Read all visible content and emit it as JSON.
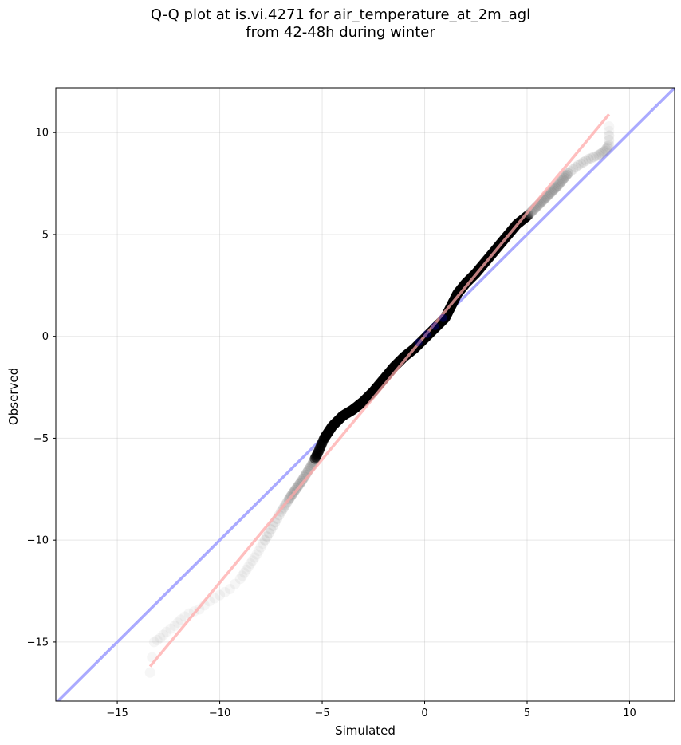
{
  "chart_data": {
    "type": "scatter",
    "title_line1": "Q-Q plot at is.vi.4271 for air_temperature_at_2m_agl",
    "title_line2": "from 42-48h during winter",
    "xlabel": "Simulated",
    "ylabel": "Observed",
    "xlim": [
      -18,
      12.2
    ],
    "ylim": [
      -17.9,
      12.2
    ],
    "xticks": [
      -15,
      -10,
      -5,
      0,
      5,
      10
    ],
    "yticks": [
      -15,
      -10,
      -5,
      0,
      5,
      10
    ],
    "xtick_labels": [
      "−15",
      "−10",
      "−5",
      "0",
      "5",
      "10"
    ],
    "ytick_labels": [
      "−15",
      "−10",
      "−5",
      "0",
      "5",
      "10"
    ],
    "grid": true,
    "identity_line": {
      "x": [
        -18,
        12.2
      ],
      "y": [
        -18,
        12.2
      ],
      "color": "#aaaaff"
    },
    "fit_line": {
      "x": [
        -13.4,
        9.0
      ],
      "y": [
        -16.2,
        10.9
      ],
      "color": "#ffaaaa"
    },
    "colors": {
      "points": "#888888",
      "dense_points": "#000000",
      "center": "#0000aa"
    },
    "quantile_curve": [
      [
        -13.4,
        -16.5
      ],
      [
        -13.2,
        -15.0
      ],
      [
        -12.9,
        -14.8
      ],
      [
        -12.6,
        -14.5
      ],
      [
        -12.2,
        -14.2
      ],
      [
        -11.9,
        -13.9
      ],
      [
        -11.5,
        -13.6
      ],
      [
        -11.0,
        -13.4
      ],
      [
        -10.5,
        -13.0
      ],
      [
        -10.0,
        -12.7
      ],
      [
        -9.5,
        -12.4
      ],
      [
        -9.0,
        -11.9
      ],
      [
        -8.6,
        -11.3
      ],
      [
        -8.2,
        -10.7
      ],
      [
        -7.8,
        -10.0
      ],
      [
        -7.4,
        -9.3
      ],
      [
        -7.0,
        -8.6
      ],
      [
        -6.5,
        -7.8
      ],
      [
        -6.0,
        -7.1
      ],
      [
        -5.5,
        -6.3
      ],
      [
        -5.2,
        -5.7
      ],
      [
        -4.9,
        -5.0
      ],
      [
        -4.5,
        -4.4
      ],
      [
        -4.0,
        -3.9
      ],
      [
        -3.5,
        -3.6
      ],
      [
        -3.0,
        -3.2
      ],
      [
        -2.5,
        -2.7
      ],
      [
        -2.0,
        -2.1
      ],
      [
        -1.5,
        -1.5
      ],
      [
        -1.0,
        -1.0
      ],
      [
        -0.5,
        -0.6
      ],
      [
        0.0,
        -0.1
      ],
      [
        0.5,
        0.4
      ],
      [
        1.0,
        0.9
      ],
      [
        1.3,
        1.5
      ],
      [
        1.6,
        2.1
      ],
      [
        2.0,
        2.6
      ],
      [
        2.5,
        3.1
      ],
      [
        3.0,
        3.7
      ],
      [
        3.5,
        4.3
      ],
      [
        4.0,
        4.9
      ],
      [
        4.5,
        5.5
      ],
      [
        5.0,
        5.9
      ],
      [
        5.5,
        6.4
      ],
      [
        6.0,
        6.9
      ],
      [
        6.5,
        7.4
      ],
      [
        7.0,
        8.0
      ],
      [
        7.5,
        8.4
      ],
      [
        8.0,
        8.7
      ],
      [
        8.5,
        8.9
      ],
      [
        8.8,
        9.1
      ],
      [
        9.0,
        9.4
      ],
      [
        9.0,
        10.3
      ]
    ]
  }
}
